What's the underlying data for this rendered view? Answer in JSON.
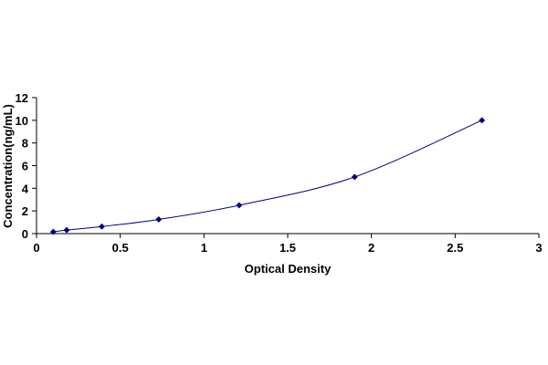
{
  "chart_data": {
    "type": "scatter",
    "title": "",
    "xlabel": "Optical Density",
    "ylabel": "Concentration(ng/mL)",
    "xlim": [
      0,
      3
    ],
    "ylim": [
      0,
      12
    ],
    "x_ticks": [
      "0",
      "0.5",
      "1",
      "1.5",
      "2",
      "2.5",
      "3"
    ],
    "y_ticks": [
      "0",
      "2",
      "4",
      "6",
      "8",
      "10",
      "12"
    ],
    "grid": false,
    "legend": "none",
    "trendline": "smooth curve through points",
    "series": [
      {
        "color": "#000080",
        "line_color": "#000080",
        "marker": "diamond",
        "x": [
          0.1,
          0.18,
          0.39,
          0.73,
          1.21,
          1.9,
          2.66
        ],
        "y": [
          0.156,
          0.312,
          0.625,
          1.25,
          2.5,
          5,
          10
        ]
      }
    ]
  }
}
